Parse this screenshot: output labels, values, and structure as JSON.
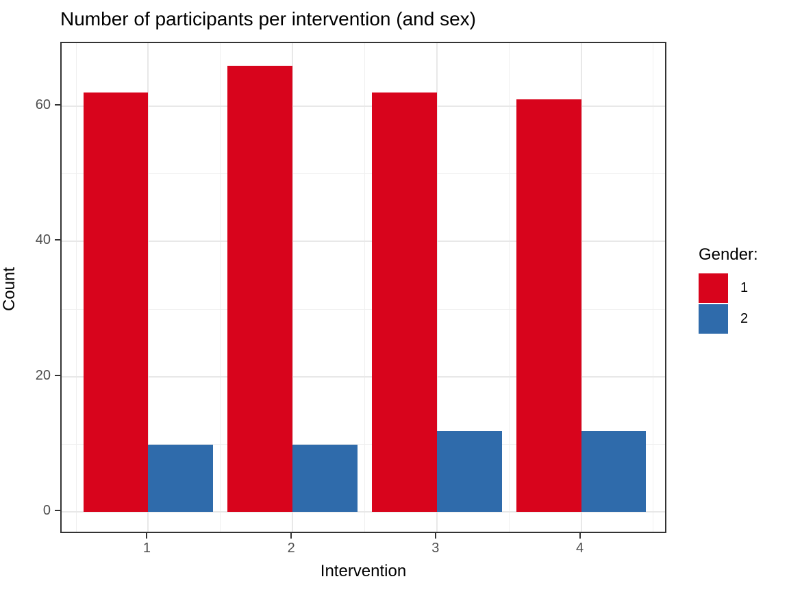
{
  "chart_data": {
    "type": "bar",
    "title": "Number of participants per intervention (and sex)",
    "xlabel": "Intervention",
    "ylabel": "Count",
    "categories": [
      1,
      2,
      3,
      4
    ],
    "series": [
      {
        "name": "1",
        "color": "#d8041c",
        "values": [
          62,
          66,
          62,
          61
        ]
      },
      {
        "name": "2",
        "color": "#2f6bab",
        "values": [
          10,
          10,
          12,
          12
        ]
      }
    ],
    "legend_title": "Gender:",
    "legend_position": "right",
    "x_tick_labels": [
      "1",
      "2",
      "3",
      "4"
    ],
    "y_tick_labels": [
      "0",
      "20",
      "40",
      "60"
    ],
    "y_major_breaks": [
      0,
      20,
      40,
      60
    ],
    "y_minor_breaks": [
      10,
      30,
      50
    ],
    "x_major_breaks": [
      1,
      2,
      3,
      4
    ],
    "x_minor_breaks": [
      0.5,
      1.5,
      2.5,
      3.5,
      4.5
    ],
    "xlim": [
      0.4,
      4.6
    ],
    "ylim": [
      -3.3,
      69.3
    ],
    "bar_width": 0.45,
    "grid": true,
    "style": {
      "grid_major_color": "#e8e8e8",
      "grid_minor_color": "#efefef",
      "panel_border_color": "#333333",
      "axis_text_color": "#4d4d4d",
      "tick_color": "#333333",
      "background": "#ffffff"
    }
  }
}
